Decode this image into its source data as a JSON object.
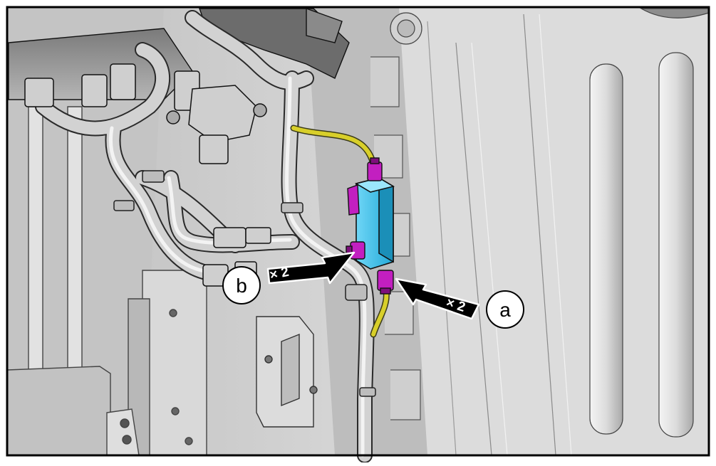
{
  "callouts": [
    {
      "id": "a",
      "letter": "a",
      "multiplier": "× 2",
      "target": "connector-lower"
    },
    {
      "id": "b",
      "letter": "b",
      "multiplier": "× 2",
      "target": "connector-left"
    }
  ],
  "colors": {
    "module": "#3cc0ec",
    "module_dark": "#1b8fb8",
    "connector": "#c21fc0",
    "connector_dark": "#7d0f7c",
    "harness_yellow": "#d8cf2a",
    "panel_base": "#c9c9c9",
    "panel_light": "#e6e6e6",
    "panel_shadow": "#9a9a9a",
    "outline": "#111111",
    "arrow": "#000000",
    "frame": "#000000"
  }
}
